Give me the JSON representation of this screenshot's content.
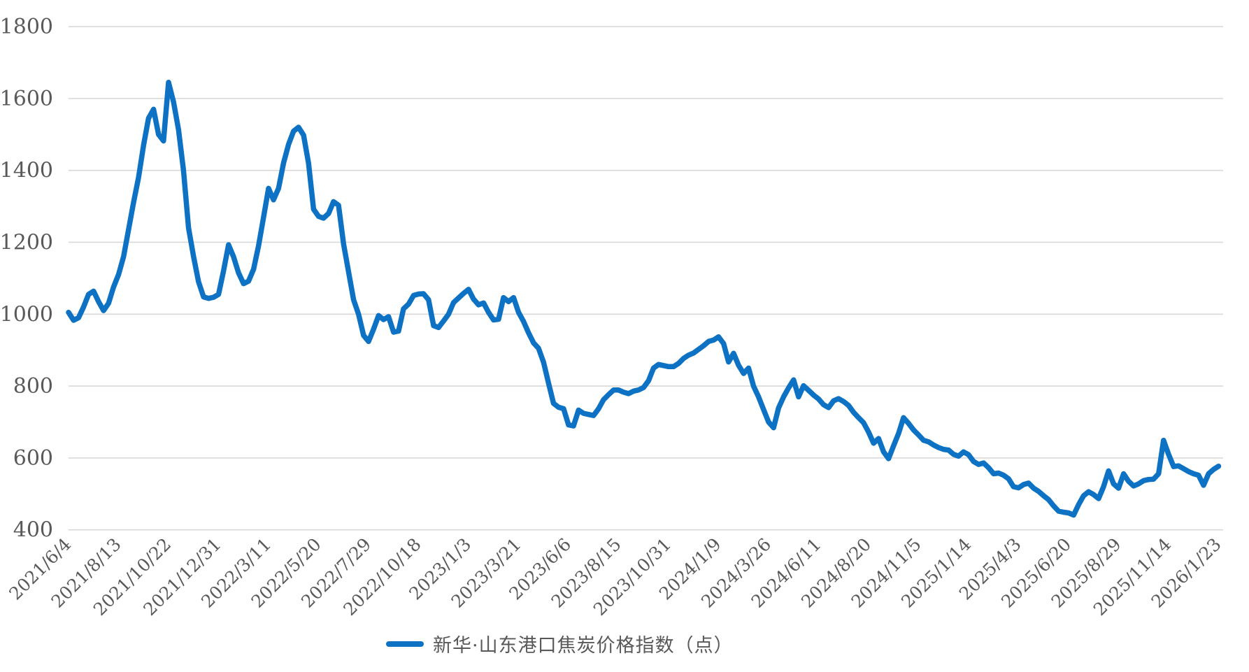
{
  "legend": {
    "label": "新华·山东港口焦炭价格指数（点）"
  },
  "colors": {
    "line": "#0d72c4",
    "grid": "#d9d9d9",
    "axis_text": "#595959",
    "background": "#ffffff"
  },
  "chart_data": {
    "type": "line",
    "title": "",
    "legend_position": "bottom-center",
    "grid": "horizontal",
    "ylim": [
      400,
      1800
    ],
    "y_ticks": [
      400,
      600,
      800,
      1000,
      1200,
      1400,
      1600,
      1800
    ],
    "x_tick_labels": [
      "2021/6/4",
      "2021/8/13",
      "2021/10/22",
      "2021/12/31",
      "2022/3/11",
      "2022/5/20",
      "2022/7/29",
      "2022/10/18",
      "2023/1/3",
      "2023/3/21",
      "2023/6/6",
      "2023/8/15",
      "2023/10/31",
      "2024/1/9",
      "2024/3/26",
      "2024/6/11",
      "2024/8/20",
      "2024/11/5",
      "2025/1/14",
      "2025/4/3",
      "2025/6/20",
      "2025/8/29",
      "2025/11/14",
      "2026/1/23"
    ],
    "points_per_tick": 10,
    "series": [
      {
        "name": "新华·山东港口焦炭价格指数（点）",
        "values": [
          1005,
          983,
          990,
          1020,
          1055,
          1064,
          1035,
          1010,
          1030,
          1075,
          1110,
          1160,
          1235,
          1310,
          1380,
          1470,
          1545,
          1570,
          1500,
          1482,
          1645,
          1590,
          1513,
          1400,
          1240,
          1160,
          1090,
          1048,
          1044,
          1047,
          1055,
          1120,
          1193,
          1160,
          1115,
          1085,
          1092,
          1125,
          1190,
          1270,
          1350,
          1318,
          1350,
          1420,
          1472,
          1509,
          1520,
          1498,
          1420,
          1292,
          1272,
          1267,
          1280,
          1313,
          1303,
          1195,
          1118,
          1040,
          1000,
          941,
          924,
          958,
          996,
          985,
          993,
          950,
          953,
          1015,
          1028,
          1052,
          1056,
          1057,
          1040,
          968,
          963,
          981,
          1000,
          1032,
          1045,
          1058,
          1069,
          1042,
          1026,
          1031,
          1005,
          984,
          986,
          1046,
          1035,
          1046,
          1005,
          980,
          948,
          920,
          905,
          866,
          808,
          752,
          741,
          737,
          692,
          689,
          733,
          724,
          721,
          718,
          737,
          762,
          776,
          789,
          789,
          783,
          779,
          786,
          789,
          796,
          815,
          850,
          860,
          857,
          854,
          854,
          863,
          877,
          886,
          892,
          902,
          912,
          924,
          928,
          937,
          918,
          867,
          891,
          858,
          835,
          850,
          800,
          770,
          735,
          700,
          684,
          739,
          770,
          795,
          817,
          770,
          801,
          788,
          775,
          764,
          748,
          740,
          759,
          765,
          757,
          746,
          727,
          712,
          698,
          672,
          641,
          654,
          617,
          598,
          634,
          668,
          712,
          696,
          678,
          664,
          649,
          645,
          636,
          629,
          624,
          622,
          610,
          605,
          617,
          609,
          590,
          582,
          586,
          573,
          556,
          558,
          552,
          542,
          520,
          517,
          526,
          530,
          516,
          507,
          495,
          484,
          467,
          452,
          449,
          447,
          441,
          470,
          495,
          506,
          498,
          487,
          520,
          564,
          528,
          516,
          556,
          535,
          522,
          528,
          537,
          540,
          541,
          556,
          649,
          610,
          576,
          578,
          570,
          562,
          556,
          552,
          524,
          556,
          568,
          577
        ]
      }
    ]
  }
}
